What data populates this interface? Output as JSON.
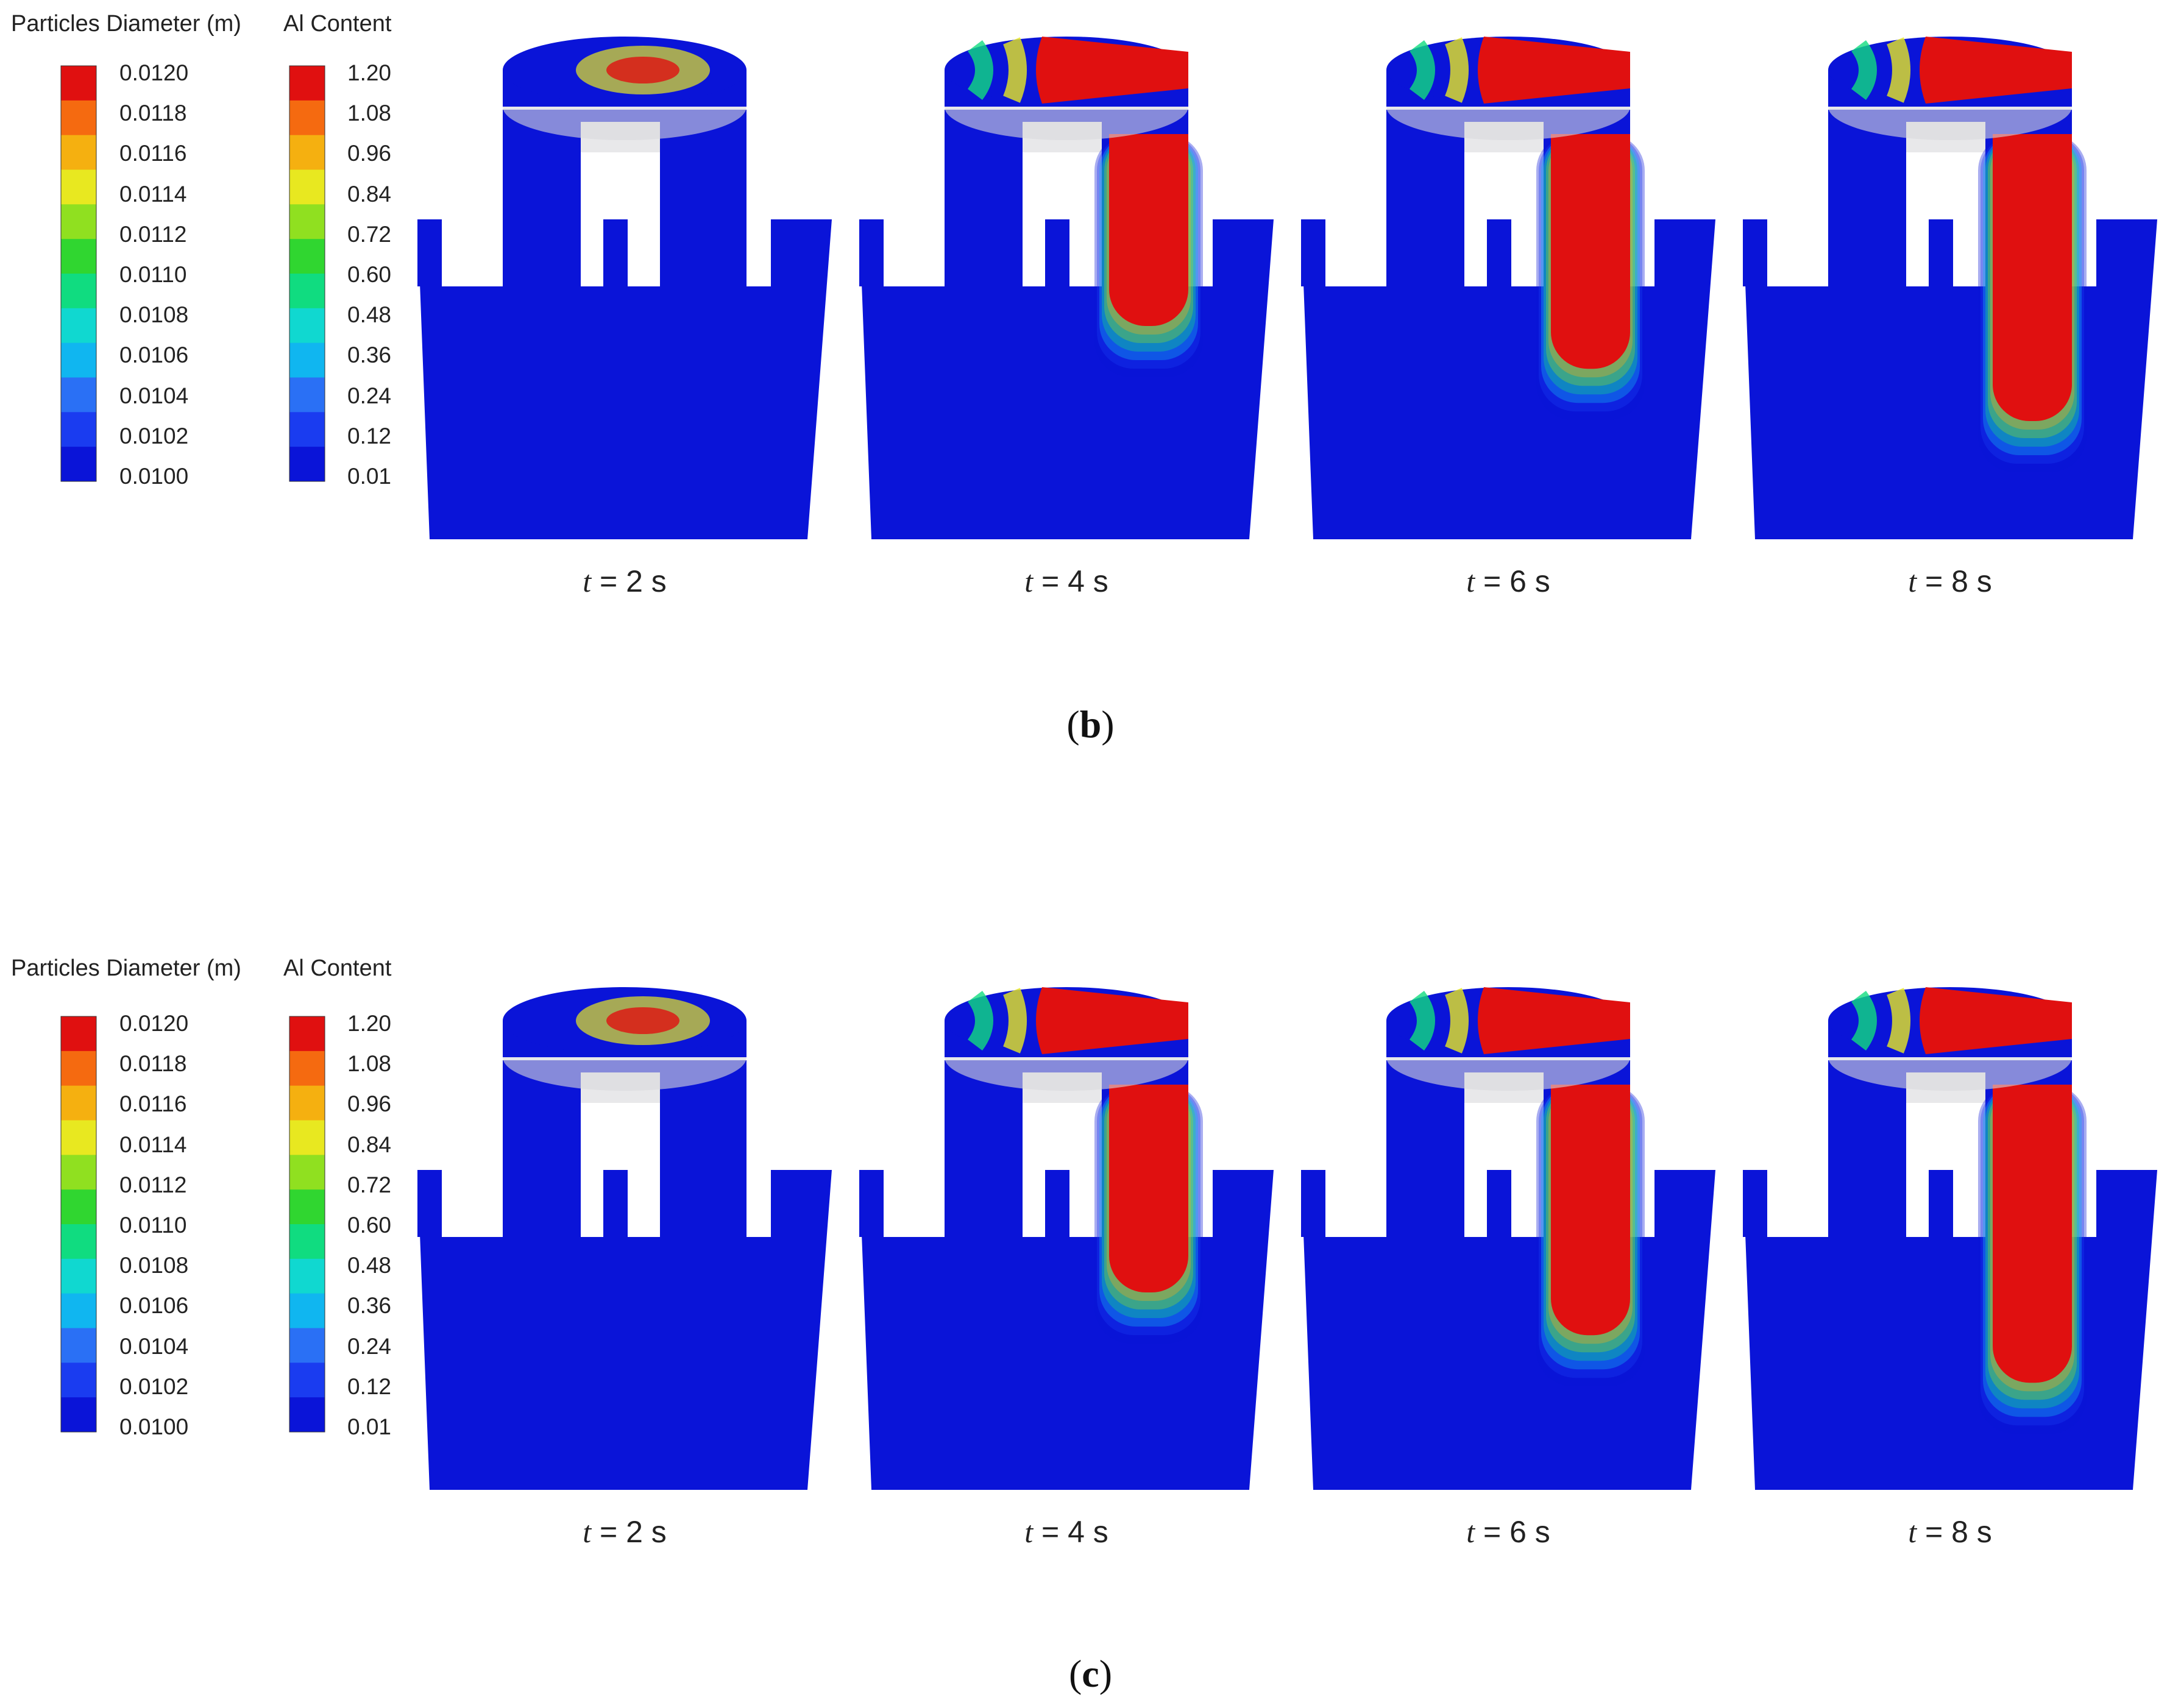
{
  "panels": [
    {
      "id": "b",
      "caption": "b",
      "legend_particles": {
        "title": "Particles Diameter (m)",
        "ticks": [
          "0.0120",
          "0.0118",
          "0.0116",
          "0.0114",
          "0.0112",
          "0.0110",
          "0.0108",
          "0.0106",
          "0.0104",
          "0.0102",
          "0.0100"
        ]
      },
      "legend_al": {
        "title": "Al Content",
        "ticks": [
          "1.20",
          "1.08",
          "0.96",
          "0.84",
          "0.72",
          "0.60",
          "0.48",
          "0.36",
          "0.24",
          "0.12",
          "0.01"
        ]
      },
      "frames": [
        {
          "t_symbol": "t",
          "t_text": " = 2 s",
          "plume": 0.0
        },
        {
          "t_symbol": "t",
          "t_text": " = 4 s",
          "plume": 0.25
        },
        {
          "t_symbol": "t",
          "t_text": " = 6 s",
          "plume": 0.52
        },
        {
          "t_symbol": "t",
          "t_text": " = 8 s",
          "plume": 0.85
        }
      ]
    },
    {
      "id": "c",
      "caption": "c",
      "legend_particles": {
        "title": "Particles Diameter (m)",
        "ticks": [
          "0.0120",
          "0.0118",
          "0.0116",
          "0.0114",
          "0.0112",
          "0.0110",
          "0.0108",
          "0.0106",
          "0.0104",
          "0.0102",
          "0.0100"
        ]
      },
      "legend_al": {
        "title": "Al Content",
        "ticks": [
          "1.20",
          "1.08",
          "0.96",
          "0.84",
          "0.72",
          "0.60",
          "0.48",
          "0.36",
          "0.24",
          "0.12",
          "0.01"
        ]
      },
      "frames": [
        {
          "t_symbol": "t",
          "t_text": " = 2 s",
          "plume": 0.05
        },
        {
          "t_symbol": "t",
          "t_text": " = 4 s",
          "plume": 0.35
        },
        {
          "t_symbol": "t",
          "t_text": " = 6 s",
          "plume": 0.62
        },
        {
          "t_symbol": "t",
          "t_text": " = 8 s",
          "plume": 0.92
        }
      ]
    }
  ],
  "colormap": [
    "#0a14d8",
    "#1a3cf0",
    "#2a70f5",
    "#10b6f0",
    "#10d8d0",
    "#10dc80",
    "#30d630",
    "#90e020",
    "#e8e820",
    "#f5b010",
    "#f56a10",
    "#e01010"
  ]
}
